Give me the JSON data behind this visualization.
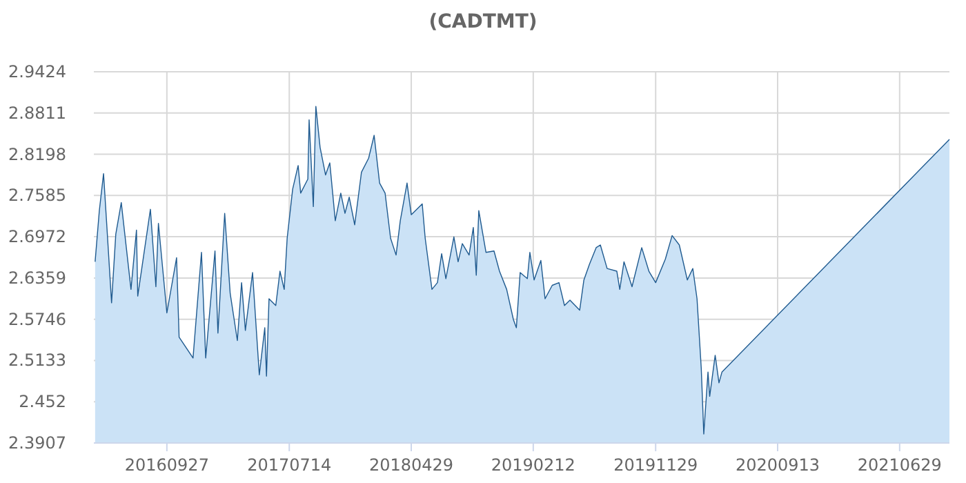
{
  "chart_data": {
    "type": "area",
    "title": "(CADTMT)",
    "x": [
      "2016-04-10",
      "2016-04-20",
      "2016-04-30",
      "2016-05-09",
      "2016-05-19",
      "2016-05-29",
      "2016-06-11",
      "2016-07-04",
      "2016-07-17",
      "2016-07-20",
      "2016-08-19",
      "2016-09-01",
      "2016-09-07",
      "2016-09-27",
      "2016-10-20",
      "2016-10-26",
      "2016-11-28",
      "2016-12-18",
      "2016-12-28",
      "2017-01-19",
      "2017-01-26",
      "2017-02-11",
      "2017-02-24",
      "2017-03-13",
      "2017-03-23",
      "2017-04-01",
      "2017-04-18",
      "2017-05-04",
      "2017-05-17",
      "2017-05-21",
      "2017-05-27",
      "2017-06-12",
      "2017-06-22",
      "2017-07-02",
      "2017-07-09",
      "2017-07-22",
      "2017-08-04",
      "2017-08-10",
      "2017-08-27",
      "2017-08-30",
      "2017-09-09",
      "2017-09-15",
      "2017-09-25",
      "2017-10-08",
      "2017-10-18",
      "2017-10-31",
      "2017-11-13",
      "2017-11-23",
      "2017-12-03",
      "2017-12-16",
      "2018-01-01",
      "2018-01-18",
      "2018-01-31",
      "2018-02-13",
      "2018-02-26",
      "2018-03-11",
      "2018-03-24",
      "2018-04-03",
      "2018-04-19",
      "2018-04-29",
      "2018-05-25",
      "2018-06-01",
      "2018-06-17",
      "2018-06-30",
      "2018-07-10",
      "2018-07-20",
      "2018-08-08",
      "2018-08-18",
      "2018-08-28",
      "2018-09-13",
      "2018-09-23",
      "2018-09-30",
      "2018-10-06",
      "2018-10-23",
      "2018-11-11",
      "2018-11-24",
      "2018-12-11",
      "2018-12-27",
      "2019-01-03",
      "2019-01-12",
      "2019-01-29",
      "2019-02-04",
      "2019-02-14",
      "2019-03-02",
      "2019-03-12",
      "2019-03-29",
      "2019-04-14",
      "2019-04-27",
      "2019-05-10",
      "2019-06-02",
      "2019-06-12",
      "2019-06-25",
      "2019-07-11",
      "2019-07-21",
      "2019-08-06",
      "2019-08-29",
      "2019-09-05",
      "2019-09-15",
      "2019-10-04",
      "2019-10-27",
      "2019-11-13",
      "2019-11-29",
      "2019-12-22",
      "2020-01-07",
      "2020-01-24",
      "2020-02-12",
      "2020-02-25",
      "2020-03-06",
      "2020-03-16",
      "2020-03-22",
      "2020-04-01",
      "2020-04-05",
      "2020-04-18",
      "2020-04-27",
      "2020-05-04",
      "2021-10-25"
    ],
    "series": [
      {
        "color": "#1f5a8f",
        "values": [
          2.66,
          2.736,
          2.791,
          2.701,
          2.599,
          2.701,
          2.748,
          2.619,
          2.707,
          2.609,
          2.738,
          2.623,
          2.717,
          2.584,
          2.666,
          2.548,
          2.517,
          2.674,
          2.517,
          2.676,
          2.554,
          2.732,
          2.613,
          2.543,
          2.629,
          2.558,
          2.644,
          2.492,
          2.562,
          2.49,
          2.605,
          2.595,
          2.646,
          2.619,
          2.695,
          2.768,
          2.803,
          2.762,
          2.783,
          2.871,
          2.742,
          2.891,
          2.83,
          2.789,
          2.807,
          2.721,
          2.762,
          2.732,
          2.756,
          2.715,
          2.793,
          2.814,
          2.848,
          2.777,
          2.762,
          2.695,
          2.67,
          2.721,
          2.777,
          2.73,
          2.746,
          2.695,
          2.619,
          2.629,
          2.672,
          2.635,
          2.697,
          2.66,
          2.687,
          2.67,
          2.711,
          2.64,
          2.736,
          2.674,
          2.676,
          2.646,
          2.619,
          2.574,
          2.562,
          2.644,
          2.635,
          2.674,
          2.633,
          2.662,
          2.605,
          2.625,
          2.629,
          2.595,
          2.603,
          2.588,
          2.633,
          2.656,
          2.681,
          2.685,
          2.65,
          2.646,
          2.619,
          2.66,
          2.623,
          2.681,
          2.646,
          2.629,
          2.664,
          2.699,
          2.685,
          2.633,
          2.65,
          2.605,
          2.502,
          2.404,
          2.496,
          2.46,
          2.521,
          2.48,
          2.496,
          2.842
        ]
      }
    ],
    "xlim": [
      "2016-04-07",
      "2021-10-25"
    ],
    "xticks": [
      {
        "value": "2016-09-27",
        "label": "20160927"
      },
      {
        "value": "2017-07-14",
        "label": "20170714"
      },
      {
        "value": "2018-04-29",
        "label": "20180429"
      },
      {
        "value": "2019-02-12",
        "label": "20190212"
      },
      {
        "value": "2019-11-29",
        "label": "20191129"
      },
      {
        "value": "2020-09-13",
        "label": "20200913"
      },
      {
        "value": "2021-06-29",
        "label": "20210629"
      }
    ],
    "ylim": [
      2.3907,
      2.9424
    ],
    "yticks": [
      2.3907,
      2.452,
      2.5133,
      2.5746,
      2.6359,
      2.6972,
      2.7585,
      2.8198,
      2.8811,
      2.9424
    ],
    "grid": true
  }
}
